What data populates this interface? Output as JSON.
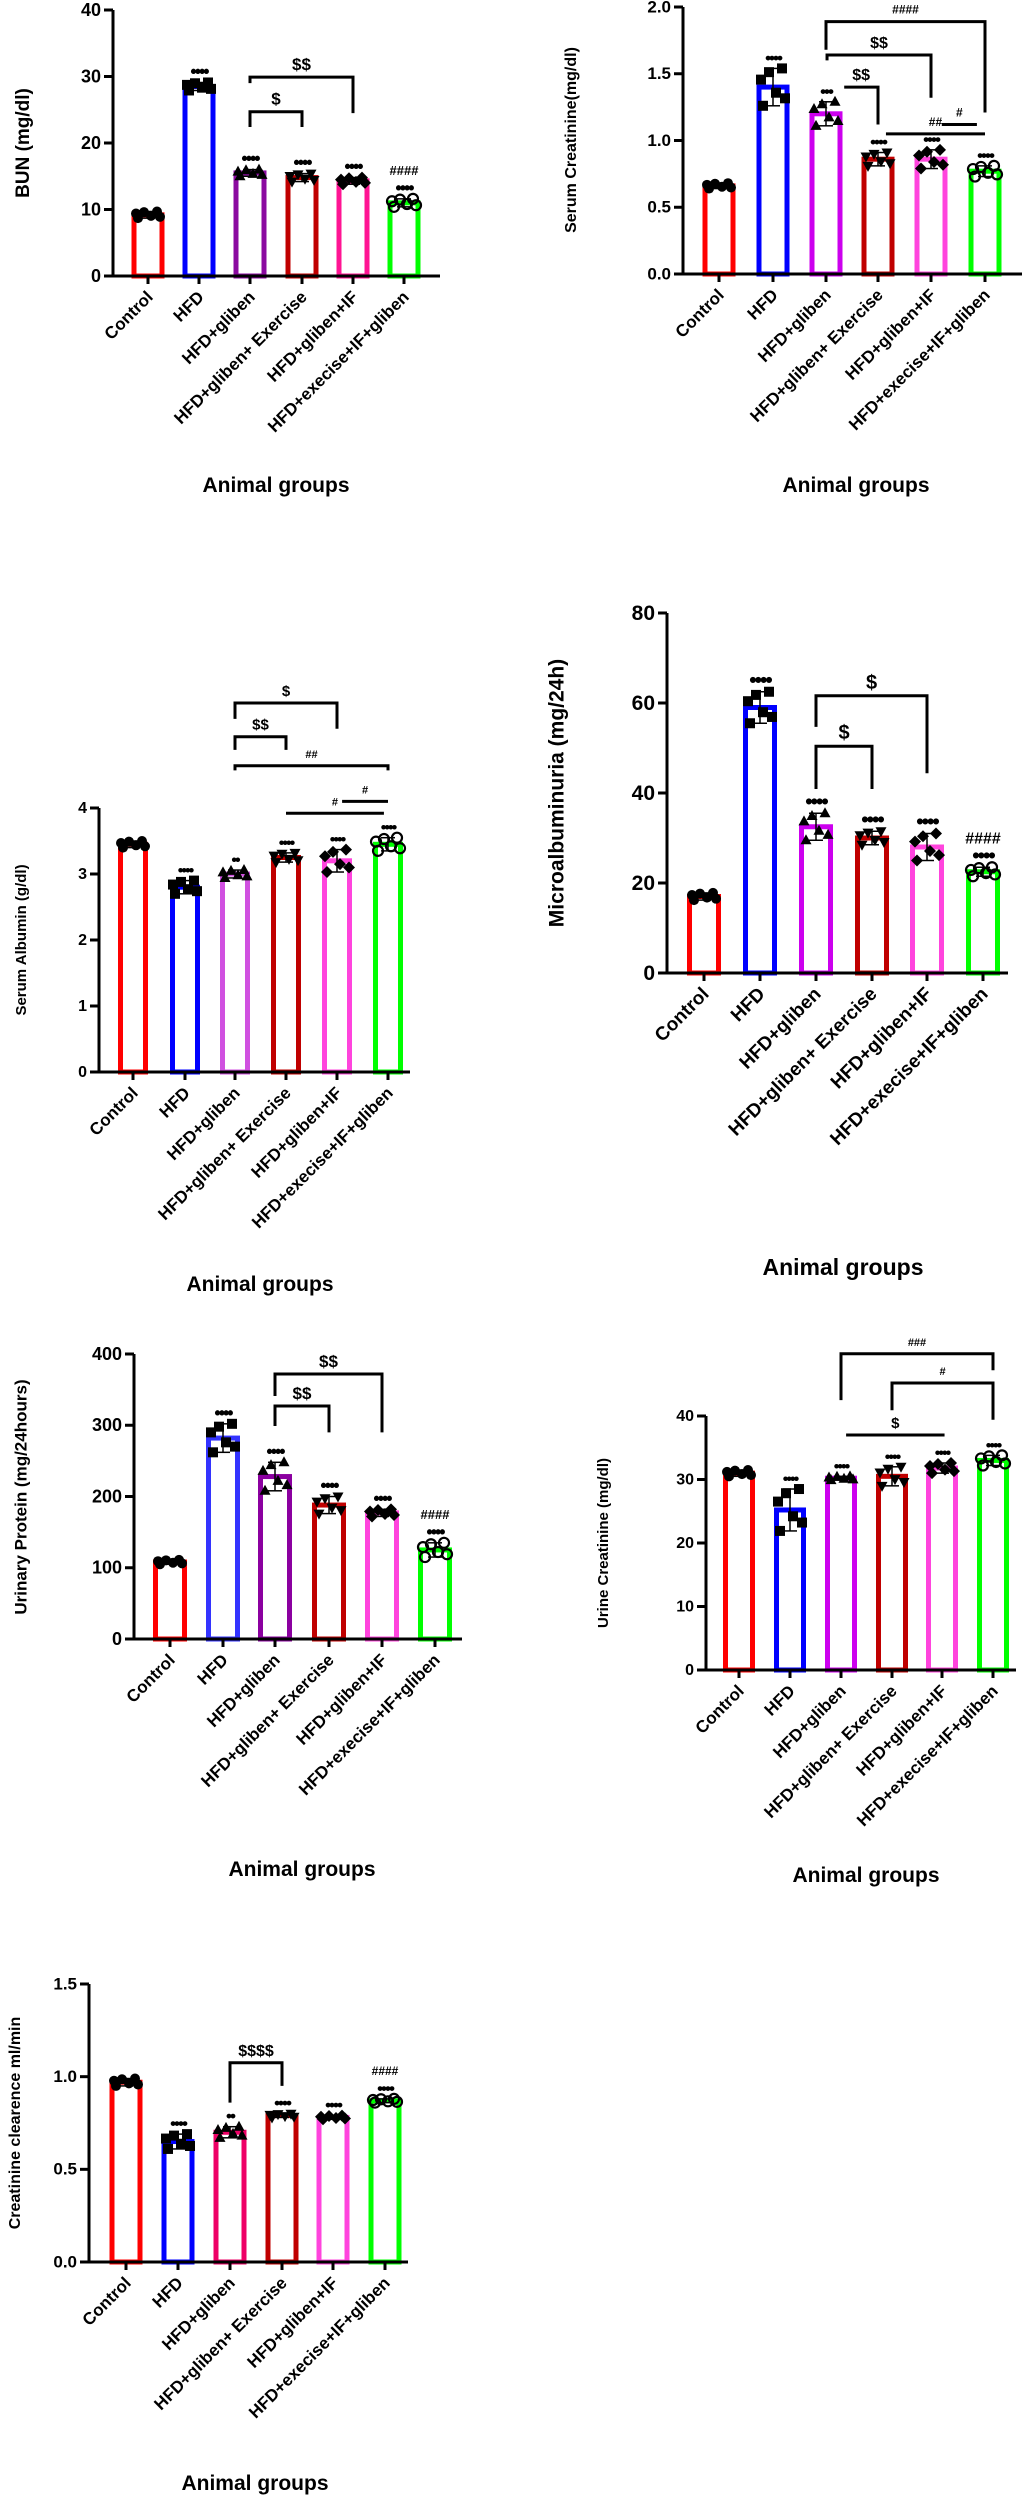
{
  "chart_data": [
    {
      "type": "bar",
      "ylabel": "BUN (mg/dl)",
      "xlabel": "Animal groups",
      "categories": [
        "Control",
        "HFD",
        "HFD+gliben",
        "HFD+gliben+ Exercise",
        "HFD+gliben+IF",
        "HFD+execise+IF+gliben"
      ],
      "values": [
        9.2,
        28.5,
        15.5,
        14.8,
        14.3,
        11.0
      ],
      "sd": [
        0.5,
        0.6,
        0.5,
        0.6,
        0.5,
        0.6
      ],
      "colors": [
        "#ff0000",
        "#0000ff",
        "#8b0aa0",
        "#c00000",
        "#ff1493",
        "#00ff00"
      ],
      "ylim": [
        0,
        40
      ],
      "yticks": [
        0,
        10,
        20,
        30,
        40
      ],
      "tick_labels": [
        "0",
        "10",
        "20",
        "30",
        "40"
      ],
      "markers": "each point shown as symbol",
      "stars": [
        "",
        "••••",
        "••••",
        "••••",
        "••••",
        "••••"
      ],
      "hash": [
        "",
        "",
        "",
        "",
        "",
        "####"
      ],
      "brackets": [
        {
          "label": "$",
          "x1": 2,
          "x2": 3,
          "y": 24.7,
          "l_end": 22.4,
          "r_end": 22.4
        },
        {
          "label": "$$",
          "x1": 2,
          "x2": 4,
          "y": 29.9,
          "l_end": 29.0,
          "r_end": 24.5
        }
      ]
    },
    {
      "type": "bar",
      "ylabel": "Serum Creatinine(mg/dl)",
      "xlabel": "Animal groups",
      "categories": [
        "Control",
        "HFD",
        "HFD+gliben",
        "HFD+gliben+ Exercise",
        "HFD+gliben+IF",
        "HFD+execise+IF+gliben"
      ],
      "values": [
        0.66,
        1.4,
        1.2,
        0.86,
        0.86,
        0.77
      ],
      "sd": [
        0.02,
        0.14,
        0.09,
        0.05,
        0.07,
        0.04
      ],
      "colors": [
        "#ff0000",
        "#0000ff",
        "#cc00ee",
        "#c00000",
        "#ff44dd",
        "#00ff00"
      ],
      "ylim": [
        0,
        2.0
      ],
      "yticks": [
        0,
        0.5,
        1.0,
        1.5,
        2.0
      ],
      "tick_labels": [
        "0.0",
        "0.5",
        "1.0",
        "1.5",
        "2.0"
      ],
      "stars": [
        "",
        "••••",
        "•••",
        "••••",
        "••••",
        "••••"
      ],
      "hash": [
        "",
        "",
        "",
        "",
        "",
        ""
      ],
      "brackets": [
        {
          "label": "####",
          "x1": 2,
          "x2": 5,
          "y": 1.89,
          "l_end": 1.68,
          "r_end": 1.21
        },
        {
          "label": "$$",
          "x1": 2.02,
          "x2": 4,
          "y": 1.64,
          "l_end": 1.6,
          "r_end": 1.32
        },
        {
          "label": "$$",
          "x1": 2.35,
          "x2": 3,
          "y": 1.4,
          "l_end": 1.4,
          "r_end": 1.12
        },
        {
          "label": "##",
          "x1": 3.15,
          "x2": 5,
          "y": 1.05,
          "l_end": 1.05,
          "r_end": 1.05
        },
        {
          "label": "#",
          "x1": 4.2,
          "x2": 4.85,
          "y": 1.12,
          "l_end": 1.12,
          "r_end": 1.12
        }
      ]
    },
    {
      "type": "bar",
      "ylabel": "Serum Albumin (g/dl)",
      "xlabel": "Animal groups",
      "categories": [
        "Control",
        "HFD",
        "HFD+gliben",
        "HFD+gliben+ Exercise",
        "HFD+gliben+IF",
        "HFD+execise+IF+gliben"
      ],
      "values": [
        3.45,
        2.8,
        3.0,
        3.25,
        3.2,
        3.45
      ],
      "sd": [
        0.05,
        0.1,
        0.06,
        0.07,
        0.17,
        0.1
      ],
      "colors": [
        "#ff0000",
        "#0000ff",
        "#d050e0",
        "#c00000",
        "#ff44dd",
        "#00ff00"
      ],
      "ylim": [
        0,
        4
      ],
      "yticks": [
        0,
        1,
        2,
        3,
        4
      ],
      "tick_labels": [
        "0",
        "1",
        "2",
        "3",
        "4"
      ],
      "stars": [
        "",
        "••••",
        "••",
        "••••",
        "••••",
        "••••"
      ],
      "hash": [
        "",
        "",
        "",
        "",
        "",
        ""
      ],
      "brackets": [
        {
          "label": "$",
          "x1": 2,
          "x2": 4,
          "y": 5.59,
          "l_end": 5.35,
          "r_end": 5.2
        },
        {
          "label": "$$",
          "x1": 2,
          "x2": 3,
          "y": 5.08,
          "l_end": 4.88,
          "r_end": 4.88
        },
        {
          "label": "##",
          "x1": 2,
          "x2": 5,
          "y": 4.64,
          "l_end": 4.57,
          "r_end": 4.57
        },
        {
          "label": "#",
          "x1": 3,
          "x2": 4.92,
          "y": 3.92,
          "l_end": 3.92,
          "r_end": 3.92
        },
        {
          "label": "#",
          "x1": 4.1,
          "x2": 5,
          "y": 4.1,
          "l_end": 4.1,
          "r_end": 4.1
        }
      ]
    },
    {
      "type": "bar",
      "ylabel": "Microalbuminuria (mg/24h)",
      "xlabel": "Animal groups",
      "categories": [
        "Control",
        "HFD",
        "HFD+gliben",
        "HFD+gliben+ Exercise",
        "HFD+gliben+IF",
        "HFD+execise+IF+gliben"
      ],
      "values": [
        17,
        59,
        32.5,
        30,
        28,
        22.5
      ],
      "sd": [
        0.8,
        3.5,
        3.0,
        1.5,
        3.0,
        1.0
      ],
      "colors": [
        "#ff0000",
        "#0000ff",
        "#cc00ee",
        "#c00000",
        "#ff44dd",
        "#00ff00"
      ],
      "ylim": [
        0,
        80
      ],
      "yticks": [
        0,
        20,
        40,
        60,
        80
      ],
      "tick_labels": [
        "0",
        "20",
        "40",
        "60",
        "80"
      ],
      "stars": [
        "",
        "••••",
        "••••",
        "••••",
        "••••",
        "••••"
      ],
      "hash": [
        "",
        "",
        "",
        "",
        "",
        "####"
      ],
      "brackets": [
        {
          "label": "$",
          "x1": 2,
          "x2": 3,
          "y": 50.4,
          "l_end": 40.9,
          "r_end": 40.9
        },
        {
          "label": "$",
          "x1": 2,
          "x2": 4,
          "y": 61.6,
          "l_end": 54.7,
          "r_end": 44.4
        }
      ]
    },
    {
      "type": "bar",
      "ylabel": "Urinary Protein (mg/24hours)",
      "xlabel": "Animal groups",
      "categories": [
        "Control",
        "HFD",
        "HFD+gliben",
        "HFD+gliben+ Exercise",
        "HFD+gliben+IF",
        "HFD+execise+IF+gliben"
      ],
      "values": [
        108,
        282,
        228,
        188,
        177,
        125
      ],
      "sd": [
        3,
        20,
        20,
        12,
        5,
        10
      ],
      "colors": [
        "#ff0000",
        "#3333ff",
        "#8b00a0",
        "#c00000",
        "#ff44dd",
        "#00ff00"
      ],
      "ylim": [
        0,
        400
      ],
      "yticks": [
        0,
        100,
        200,
        300,
        400
      ],
      "tick_labels": [
        "0",
        "100",
        "200",
        "300",
        "400"
      ],
      "stars": [
        "",
        "••••",
        "••••",
        "••••",
        "••••",
        "••••"
      ],
      "hash": [
        "",
        "",
        "",
        "",
        "",
        "####"
      ],
      "brackets": [
        {
          "label": "$$",
          "x1": 2,
          "x2": 3,
          "y": 327,
          "l_end": 299,
          "r_end": 290
        },
        {
          "label": "$$",
          "x1": 2,
          "x2": 4,
          "y": 372,
          "l_end": 341,
          "r_end": 290
        }
      ]
    },
    {
      "type": "bar",
      "ylabel": "Urine Creatinine (mg/dl)",
      "xlabel": "Animal groups",
      "categories": [
        "Control",
        "HFD",
        "HFD+gliben",
        "HFD+gliben+ Exercise",
        "HFD+gliben+IF",
        "HFD+execise+IF+gliben"
      ],
      "values": [
        31,
        25.2,
        30.2,
        30.5,
        31.8,
        33
      ],
      "sd": [
        0.5,
        3.3,
        0.3,
        1.5,
        0.8,
        0.8
      ],
      "colors": [
        "#ff0000",
        "#0000ff",
        "#cc00ee",
        "#c00000",
        "#ff44dd",
        "#00ff00"
      ],
      "ylim": [
        0,
        40
      ],
      "yticks": [
        0,
        10,
        20,
        30,
        40
      ],
      "tick_labels": [
        "0",
        "10",
        "20",
        "30",
        "40"
      ],
      "stars": [
        "",
        "••••",
        "••••",
        "••••",
        "••••",
        "••••"
      ],
      "hash": [
        "",
        "",
        "",
        "",
        "",
        ""
      ],
      "brackets": [
        {
          "label": "###",
          "x1": 2,
          "x2": 5,
          "y": 49.8,
          "l_end": 42.5,
          "r_end": 47.2
        },
        {
          "label": "#",
          "x1": 3,
          "x2": 5,
          "y": 45.2,
          "l_end": 40.9,
          "r_end": 39.4
        },
        {
          "label": "$",
          "x1": 2.1,
          "x2": 4.05,
          "y": 37,
          "l_end": 37,
          "r_end": 37
        }
      ]
    },
    {
      "type": "bar",
      "ylabel": "Creatinine clearence ml/min",
      "xlabel": "Animal groups",
      "categories": [
        "Control",
        "HFD",
        "HFD+gliben",
        "HFD+gliben+ Exercise",
        "HFD+gliben+IF",
        "HFD+execise+IF+gliben"
      ],
      "values": [
        0.97,
        0.65,
        0.7,
        0.79,
        0.78,
        0.87
      ],
      "sd": [
        0.02,
        0.04,
        0.03,
        0.01,
        0.01,
        0.01
      ],
      "colors": [
        "#ff0000",
        "#0000ff",
        "#ee0066",
        "#c00000",
        "#ff44dd",
        "#00ff00"
      ],
      "ylim": [
        0,
        1.5
      ],
      "yticks": [
        0,
        0.5,
        1.0,
        1.5
      ],
      "tick_labels": [
        "0.0",
        "0.5",
        "1.0",
        "1.5"
      ],
      "stars": [
        "",
        "••••",
        "••",
        "••••",
        "••••",
        "••••"
      ],
      "hash": [
        "",
        "",
        "",
        "",
        "",
        "####"
      ],
      "brackets": [
        {
          "label": "$$$$",
          "x1": 2,
          "x2": 3,
          "y": 1.075,
          "l_end": 0.86,
          "r_end": 0.95
        }
      ]
    }
  ]
}
